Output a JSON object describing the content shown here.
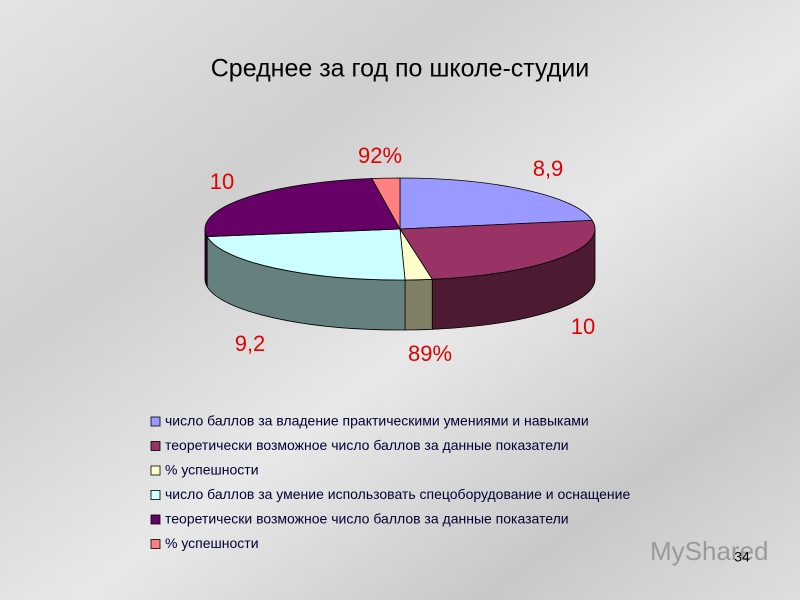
{
  "chart_data": {
    "type": "pie3d",
    "title": "Среднее за год по школе-студии",
    "categories": [
      "число баллов за владение практическими умениями и навыками",
      "теоретически возможное число баллов за данные показатели",
      "% успешности",
      "число баллов за умение использовать спецоборудование и оснащение",
      "теоретически возможное число баллов за данные показатели",
      "% успешности"
    ],
    "values": [
      8.9,
      10,
      0.89,
      9.2,
      10,
      0.92
    ],
    "value_labels": [
      "8,9",
      "10",
      "89%",
      "9,2",
      "10",
      "92%"
    ],
    "colors": [
      "#9999ff",
      "#993366",
      "#ffffcc",
      "#ccffff",
      "#660066",
      "#ff8080"
    ]
  },
  "page_number": "34",
  "watermark": "MyShared"
}
